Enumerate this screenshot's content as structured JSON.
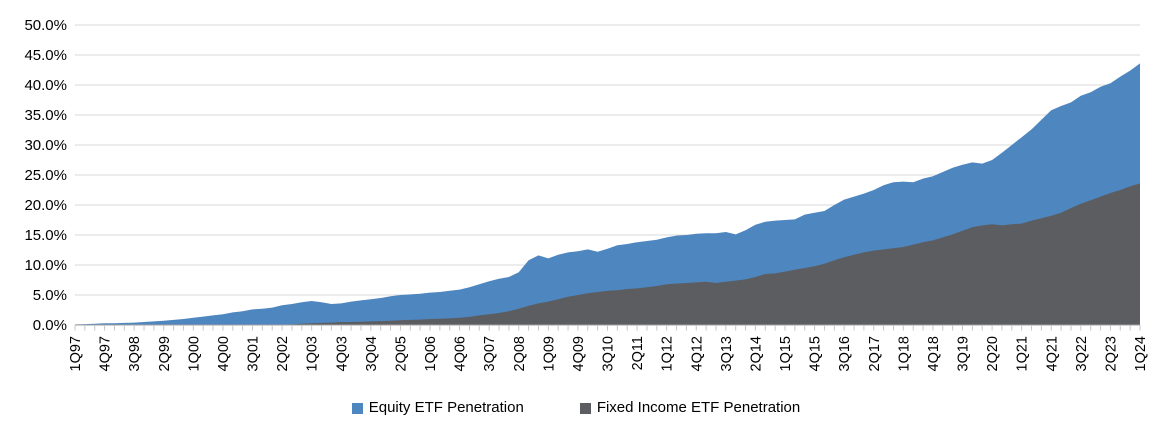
{
  "chart_data": {
    "type": "area",
    "title": "",
    "xlabel": "",
    "ylabel": "",
    "ylim": [
      0,
      50
    ],
    "grid": true,
    "legend_position": "bottom",
    "x_start": "1Q97",
    "x_end": "1Q24",
    "x_frequency": "quarterly",
    "x_tick_every_n_points": 3,
    "x_tick_labels": [
      "1Q97",
      "4Q97",
      "3Q98",
      "2Q99",
      "1Q00",
      "4Q00",
      "3Q01",
      "2Q02",
      "1Q03",
      "4Q03",
      "3Q04",
      "2Q05",
      "1Q06",
      "4Q06",
      "3Q07",
      "2Q08",
      "1Q09",
      "4Q09",
      "3Q10",
      "2Q11",
      "1Q12",
      "4Q12",
      "3Q13",
      "2Q14",
      "1Q15",
      "4Q15",
      "3Q16",
      "2Q17",
      "1Q18",
      "4Q18",
      "3Q19",
      "2Q20",
      "1Q21",
      "4Q21",
      "3Q22",
      "2Q23",
      "1Q24"
    ],
    "y_tick_labels": [
      "0.0%",
      "5.0%",
      "10.0%",
      "15.0%",
      "20.0%",
      "25.0%",
      "30.0%",
      "35.0%",
      "40.0%",
      "45.0%",
      "50.0%"
    ],
    "series": [
      {
        "name": "Equity ETF Penetration",
        "color": "#4E86C0",
        "values": [
          0.1,
          0.15,
          0.2,
          0.3,
          0.3,
          0.35,
          0.4,
          0.5,
          0.6,
          0.7,
          0.85,
          1.0,
          1.2,
          1.4,
          1.6,
          1.8,
          2.1,
          2.3,
          2.6,
          2.7,
          2.9,
          3.3,
          3.5,
          3.8,
          4.0,
          3.8,
          3.5,
          3.6,
          3.9,
          4.1,
          4.3,
          4.5,
          4.8,
          5.0,
          5.1,
          5.2,
          5.4,
          5.5,
          5.7,
          5.9,
          6.3,
          6.8,
          7.3,
          7.7,
          8.0,
          8.8,
          10.8,
          11.6,
          11.1,
          11.7,
          12.1,
          12.3,
          12.6,
          12.2,
          12.7,
          13.3,
          13.5,
          13.8,
          14.0,
          14.2,
          14.6,
          14.9,
          15.0,
          15.2,
          15.3,
          15.3,
          15.5,
          15.1,
          15.8,
          16.7,
          17.2,
          17.4,
          17.5,
          17.6,
          18.4,
          18.7,
          19.0,
          20.0,
          20.9,
          21.4,
          21.9,
          22.5,
          23.3,
          23.8,
          23.9,
          23.8,
          24.4,
          24.8,
          25.5,
          26.2,
          26.7,
          27.1,
          26.9,
          27.5,
          28.7,
          30.0,
          31.3,
          32.6,
          34.2,
          35.8,
          36.5,
          37.1,
          38.2,
          38.8,
          39.7,
          40.3,
          41.4,
          42.4,
          43.6
        ]
      },
      {
        "name": "Fixed Income ETF Penetration",
        "color": "#5B5D60",
        "values": [
          0,
          0,
          0,
          0,
          0,
          0,
          0,
          0,
          0,
          0,
          0,
          0,
          0,
          0,
          0,
          0,
          0,
          0,
          0,
          0,
          0,
          0.05,
          0.1,
          0.2,
          0.3,
          0.35,
          0.4,
          0.5,
          0.5,
          0.55,
          0.6,
          0.65,
          0.7,
          0.8,
          0.85,
          0.9,
          1.0,
          1.05,
          1.1,
          1.2,
          1.35,
          1.6,
          1.8,
          2.0,
          2.3,
          2.7,
          3.2,
          3.6,
          3.9,
          4.3,
          4.7,
          5.0,
          5.3,
          5.5,
          5.7,
          5.8,
          6.0,
          6.1,
          6.3,
          6.5,
          6.8,
          6.9,
          7.0,
          7.1,
          7.2,
          7.0,
          7.2,
          7.4,
          7.6,
          8.0,
          8.5,
          8.6,
          8.9,
          9.2,
          9.5,
          9.8,
          10.2,
          10.8,
          11.3,
          11.7,
          12.1,
          12.4,
          12.6,
          12.8,
          13.0,
          13.4,
          13.8,
          14.1,
          14.6,
          15.1,
          15.7,
          16.3,
          16.6,
          16.8,
          16.6,
          16.8,
          16.9,
          17.4,
          17.8,
          18.2,
          18.7,
          19.5,
          20.2,
          20.8,
          21.4,
          22.0,
          22.5,
          23.1,
          23.6
        ]
      }
    ],
    "colors": {
      "gridline": "#D9D9D9",
      "axis_line": "#A0A0A0",
      "tick_mark": "#C6C6C6",
      "tick_label": "#000000"
    }
  },
  "legend": {
    "items": [
      {
        "label": "Equity ETF Penetration",
        "color": "#4E86C0"
      },
      {
        "label": "Fixed Income ETF Penetration",
        "color": "#5B5D60"
      }
    ]
  }
}
